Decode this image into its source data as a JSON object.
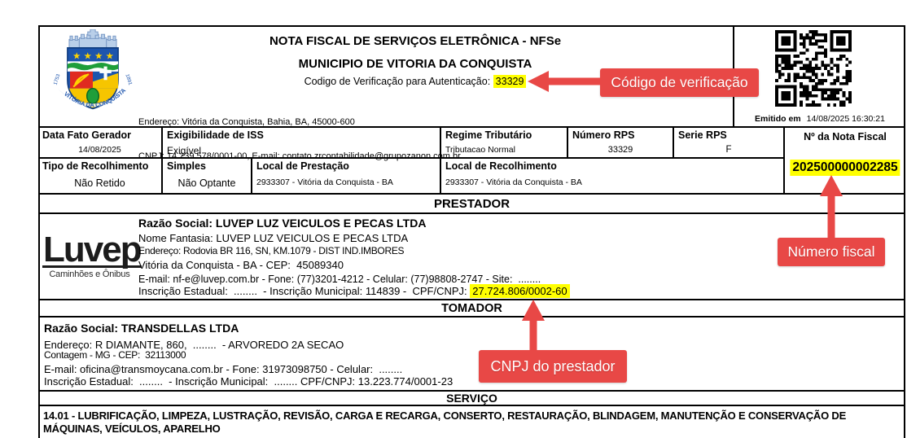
{
  "document": {
    "header": {
      "title": "NOTA FISCAL DE SERVIÇOS ELETRÔNICA - NFSe",
      "subtitle": "MUNICIPIO DE VITORIA DA CONQUISTA",
      "verification_label": "Codigo de Verificação para Autenticação: ",
      "verification_code": "33329",
      "address_line": "Endereço: Vitória da Conquista, Bahia, BA, 45000-600",
      "cnpj_line": "CNPJ: 14.239.578/0001-00, E-mail: contato.zrcontabilidade@grupozanon.com.br",
      "emitted_label": "Emitido em",
      "emitted_datetime": "14/08/2025 16:30:21",
      "crest": {
        "year_left": "1753",
        "year_right": "1891",
        "ribbon": "VITÓRIA DA CONQUISTA"
      }
    },
    "info": {
      "data_fato_gerador": {
        "label": "Data Fato Gerador",
        "value": "14/08/2025"
      },
      "exigibilidade": {
        "label": "Exigibilidade de ISS",
        "value": "Exigível"
      },
      "regime": {
        "label": "Regime Tributário",
        "value": "Tributacao Normal"
      },
      "numero_rps": {
        "label": "Número RPS",
        "value": "33329"
      },
      "serie_rps": {
        "label": "Serie RPS",
        "value": "F"
      },
      "tipo_recolhimento": {
        "label": "Tipo de Recolhimento",
        "value": "Não Retido"
      },
      "simples": {
        "label": "Simples",
        "value": "Não Optante"
      },
      "local_prestacao": {
        "label": "Local de Prestação",
        "value": "2933307 - Vitória da Conquista - BA"
      },
      "local_recolhimento": {
        "label": "Local de Recolhimento",
        "value": "2933307 - Vitória da Conquista - BA"
      },
      "nota_fiscal": {
        "label": "Nº da Nota Fiscal",
        "value": "202500000002285"
      }
    },
    "prestador": {
      "section_title": "PRESTADOR",
      "logo_text": "Luvep",
      "logo_subtext": "Caminhões e Ônibus",
      "razao_social": "Razão Social: LUVEP LUZ VEICULOS E PECAS LTDA",
      "nome_fantasia": "Nome Fantasia: LUVEP LUZ VEICULOS E PECAS LTDA",
      "endereco": "Endereço: Rodovia BR 116, SN, KM.1079 - DIST IND.IMBORES",
      "cidade": "Vitória da Conquista - BA - CEP:  45089340",
      "contato": "E-mail: nf-e@luvep.com.br - Fone: (77)3201-4212 - Celular: (77)98808-2747 - Site:  ........",
      "inscricao_prefix": "Inscrição Estadual:  ........  - Inscrição Municipal: 114839 -  CPF/CNPJ: ",
      "cnpj": "27.724.806/0002-60"
    },
    "tomador": {
      "section_title": "TOMADOR",
      "razao_social": "Razão Social: TRANSDELLAS LTDA",
      "endereco": "Endereço: R DIAMANTE, 860,  ........  - ARVOREDO 2A SECAO",
      "cidade": "Contagem - MG - CEP:  32113000",
      "contato": "E-mail: oficina@transmoycana.com.br - Fone: 31973098750 - Celular:  ........",
      "inscricao": "Inscrição Estadual:  ........  - Inscrição Municipal:  ........ CPF/CNPJ: 13.223.774/0001-23"
    },
    "servico": {
      "section_title": "SERVIÇO",
      "descricao": "14.01 - LUBRIFICAÇÃO, LIMPEZA, LUSTRAÇÃO, REVISÃO, CARGA E RECARGA, CONSERTO, RESTAURAÇÃO, BLINDAGEM, MANUTENÇÃO E CONSERVAÇÃO DE MÁQUINAS, VEÍCULOS, APARELHO"
    }
  },
  "annotations": {
    "accent_color": "#e84846",
    "highlight_color": "#ffff00",
    "verification_callout": "Código de verificação",
    "fiscal_number_callout": "Número fiscal",
    "cnpj_callout": "CNPJ do prestador"
  }
}
